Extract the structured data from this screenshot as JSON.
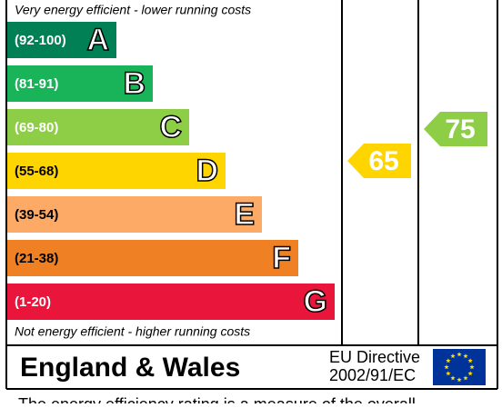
{
  "header": {
    "top_note": "Very energy efficient - lower running costs",
    "bottom_note": "Not energy efficient - higher running costs"
  },
  "bands": [
    {
      "range": "(92-100)",
      "letter": "A",
      "color": "#008054"
    },
    {
      "range": "(81-91)",
      "letter": "B",
      "color": "#19b459"
    },
    {
      "range": "(69-80)",
      "letter": "C",
      "color": "#8dce46"
    },
    {
      "range": "(55-68)",
      "letter": "D",
      "color": "#ffd500"
    },
    {
      "range": "(39-54)",
      "letter": "E",
      "color": "#fcaa65"
    },
    {
      "range": "(21-38)",
      "letter": "F",
      "color": "#ef8023"
    },
    {
      "range": "(1-20)",
      "letter": "G",
      "color": "#e9153b"
    }
  ],
  "current": {
    "value": "65",
    "color": "#ffd500"
  },
  "potential": {
    "value": "75",
    "color": "#8dce46"
  },
  "footer": {
    "region": "England & Wales",
    "directive_line1": "EU Directive",
    "directive_line2": "2002/91/EC"
  },
  "caption": "The energy efficiency rating is a measure of the overall"
}
